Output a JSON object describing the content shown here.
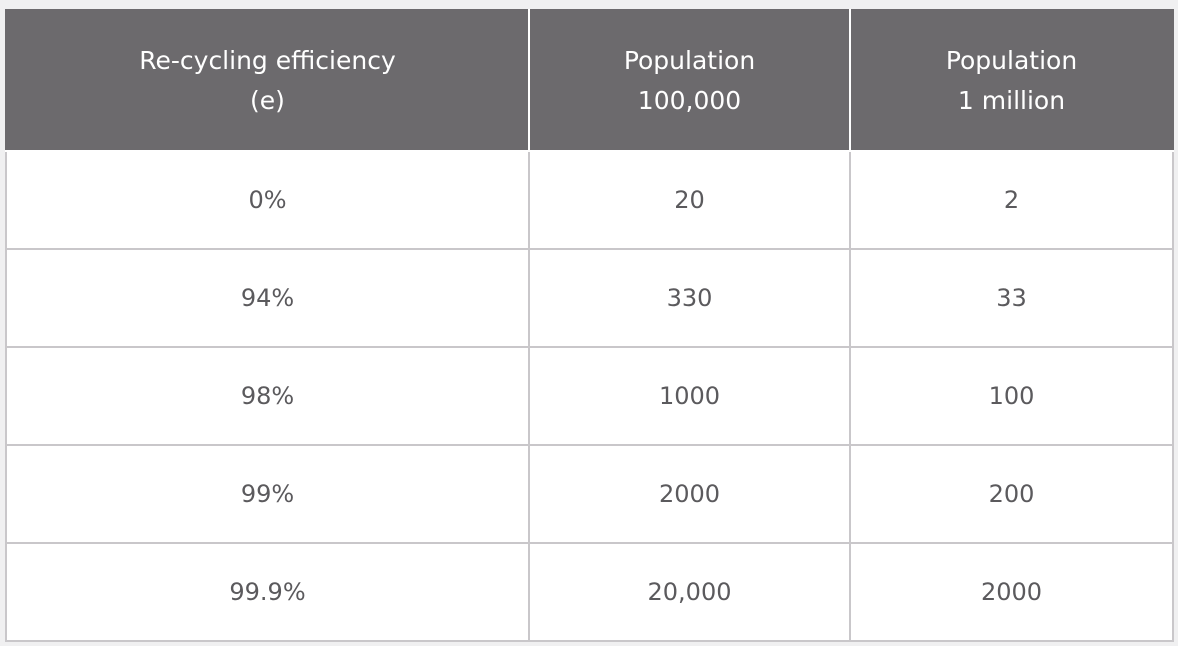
{
  "table": {
    "headers": [
      {
        "line1": "Re-cycling efficiency",
        "line2": "(e)"
      },
      {
        "line1": "Population",
        "line2": "100,000"
      },
      {
        "line1": "Population",
        "line2": "1 million"
      }
    ],
    "rows": [
      [
        "0%",
        "20",
        "2"
      ],
      [
        "94%",
        "330",
        "33"
      ],
      [
        "98%",
        "1000",
        "100"
      ],
      [
        "99%",
        "2000",
        "200"
      ],
      [
        "99.9%",
        "20,000",
        "2000"
      ]
    ],
    "colors": {
      "header_bg": "#6c6a6d",
      "header_text": "#ffffff",
      "cell_text": "#5b5a5d",
      "grid": "#c9c7ca"
    }
  }
}
